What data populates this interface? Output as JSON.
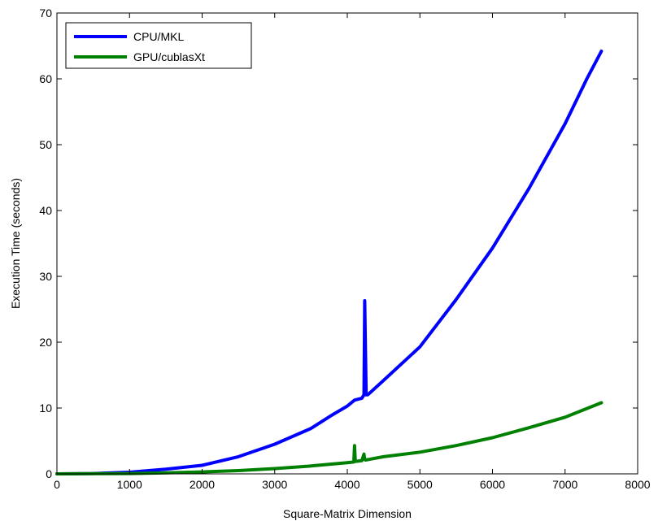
{
  "chart_data": {
    "type": "line",
    "title": "",
    "xlabel": "Square-Matrix Dimension",
    "ylabel": "Execution Time (seconds)",
    "xlim": [
      0,
      8000
    ],
    "ylim": [
      0,
      70
    ],
    "xticks": [
      "0",
      "1000",
      "2000",
      "3000",
      "4000",
      "5000",
      "6000",
      "7000",
      "8000"
    ],
    "yticks": [
      "0",
      "10",
      "20",
      "30",
      "40",
      "50",
      "60",
      "70"
    ],
    "grid": false,
    "legend_position": "top-left",
    "series": [
      {
        "name": "CPU/MKL",
        "color": "#0000ff",
        "x": [
          0,
          500,
          1000,
          1500,
          2000,
          2500,
          3000,
          3500,
          3800,
          4000,
          4100,
          4200,
          4230,
          4240,
          4250,
          4260,
          4280,
          4300,
          4500,
          5000,
          5500,
          6000,
          6500,
          7000,
          7300,
          7500
        ],
        "y": [
          0,
          0.05,
          0.25,
          0.7,
          1.3,
          2.6,
          4.5,
          6.9,
          9.0,
          10.3,
          11.2,
          11.5,
          12.0,
          26.3,
          19.0,
          12.0,
          12.0,
          12.2,
          14.2,
          19.3,
          26.5,
          34.3,
          43.3,
          53.2,
          60.0,
          64.2
        ]
      },
      {
        "name": "GPU/cublasXt",
        "color": "#008000",
        "x": [
          0,
          500,
          1000,
          1500,
          2000,
          2500,
          3000,
          3500,
          4000,
          4090,
          4100,
          4110,
          4120,
          4200,
          4230,
          4240,
          4250,
          4300,
          4500,
          5000,
          5500,
          6000,
          6500,
          7000,
          7500
        ],
        "y": [
          0,
          0.02,
          0.05,
          0.15,
          0.3,
          0.5,
          0.8,
          1.2,
          1.7,
          1.8,
          4.3,
          2.0,
          1.9,
          2.0,
          3.0,
          2.2,
          2.1,
          2.2,
          2.6,
          3.3,
          4.3,
          5.5,
          7.0,
          8.6,
          10.8
        ]
      }
    ]
  }
}
